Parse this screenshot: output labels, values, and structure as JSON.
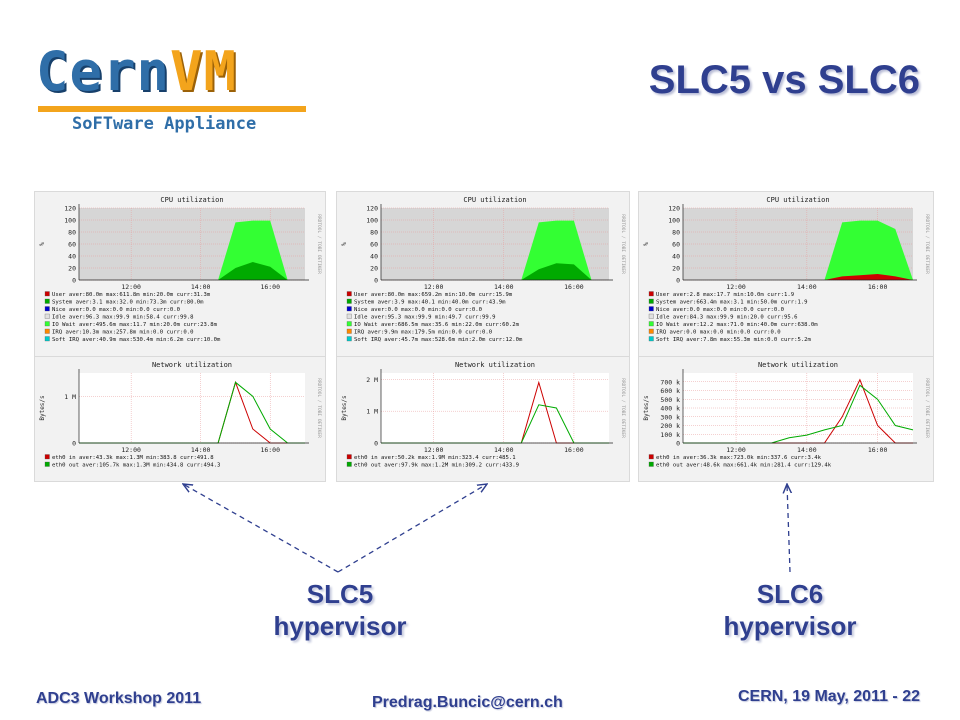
{
  "slide": {
    "title": "SLC5 vs SLC6",
    "logo": {
      "word_cern": "Cern",
      "word_vm": "VM",
      "tagline": "SoFTware Appliance"
    },
    "labels": {
      "left_line1": "SLC5",
      "left_line2": "hypervisor",
      "right_line1": "SLC6",
      "right_line2": "hypervisor"
    },
    "footer": {
      "left": "ADC3 Workshop 2011",
      "center": "Predrag.Buncic@cern.ch",
      "right": "CERN, 19 May, 2011  - 22"
    }
  },
  "colors": {
    "title_blue": "#2f3f8f",
    "logo_blue": "#2f6ea8",
    "logo_orange": "#f3a41c"
  },
  "chart_data": [
    {
      "type": "area",
      "title": "CPU utilization",
      "ylabel": "%",
      "sidelabel": "RRDTOOL / TOBI OETIKER",
      "yticks": [
        "120",
        "100",
        "80",
        "60",
        "40",
        "20",
        "0"
      ],
      "ylim": [
        0,
        120
      ],
      "xticks": [
        "12:00",
        "14:00",
        "16:00"
      ],
      "x": [
        10.5,
        11,
        11.5,
        12,
        12.5,
        13,
        13.5,
        14,
        14.5,
        15,
        15.5,
        16,
        16.5,
        17
      ],
      "series": [
        {
          "name": "User",
          "color": "#cc0000",
          "values": [
            0,
            0,
            0,
            0,
            0,
            0,
            0,
            0,
            0,
            0,
            0,
            0,
            0,
            0
          ]
        },
        {
          "name": "System",
          "color": "#00aa00",
          "values": [
            0,
            0,
            0,
            0,
            0,
            0,
            0,
            0,
            0,
            20,
            30,
            22,
            0,
            0
          ]
        },
        {
          "name": "IO Wait",
          "color": "#33ff33",
          "values": [
            0,
            0,
            0,
            0,
            0,
            0,
            0,
            0,
            0,
            96,
            99,
            99,
            0,
            0
          ]
        }
      ],
      "legend": [
        {
          "color": "#cc0000",
          "text": "User  aver:80.0m   max:611.8m  min:20.0m   curr:31.3m"
        },
        {
          "color": "#00aa00",
          "text": "System  aver:3.1    max:32.0    min:73.3m   curr:80.0m"
        },
        {
          "color": "#0000cc",
          "text": "Nice  aver:0.0    max:0.0    min:0.0    curr:0.0"
        },
        {
          "color": "#e0e0e0",
          "text": "Idle  aver:96.3   max:99.9   min:58.4   curr:99.8"
        },
        {
          "color": "#33ff33",
          "text": "IO Wait  aver:495.6m  max:11.7   min:20.0m   curr:23.8m"
        },
        {
          "color": "#ff8800",
          "text": "IRQ  aver:10.3m   max:257.8m   min:0.0   curr:0.0"
        },
        {
          "color": "#00cccc",
          "text": "Soft IRQ  aver:40.9m   max:530.4m   min:6.2m   curr:10.0m"
        }
      ]
    },
    {
      "type": "area",
      "title": "CPU utilization",
      "ylabel": "%",
      "sidelabel": "RRDTOOL / TOBI OETIKER",
      "yticks": [
        "120",
        "100",
        "80",
        "60",
        "40",
        "20",
        "0"
      ],
      "ylim": [
        0,
        120
      ],
      "xticks": [
        "12:00",
        "14:00",
        "16:00"
      ],
      "x": [
        10.5,
        11,
        11.5,
        12,
        12.5,
        13,
        13.5,
        14,
        14.5,
        15,
        15.5,
        16,
        16.5,
        17
      ],
      "series": [
        {
          "name": "User",
          "color": "#cc0000",
          "values": [
            0,
            0,
            0,
            0,
            0,
            0,
            0,
            0,
            0,
            0,
            0,
            0,
            0,
            0
          ]
        },
        {
          "name": "System",
          "color": "#00aa00",
          "values": [
            0,
            0,
            0,
            0,
            0,
            0,
            0,
            0,
            0,
            18,
            28,
            26,
            0,
            0
          ]
        },
        {
          "name": "IO Wait",
          "color": "#33ff33",
          "values": [
            0,
            0,
            0,
            0,
            0,
            0,
            0,
            0,
            0,
            96,
            99,
            99,
            0,
            0
          ]
        }
      ],
      "legend": [
        {
          "color": "#cc0000",
          "text": "User  aver:80.0m   max:659.2m   min:10.0m   curr:15.9m"
        },
        {
          "color": "#00aa00",
          "text": "System  aver:3.9    max:40.1    min:40.0m   curr:43.9m"
        },
        {
          "color": "#0000cc",
          "text": "Nice  aver:0.0   max:0.0   min:0.0   curr:0.0"
        },
        {
          "color": "#e0e0e0",
          "text": "Idle  aver:95.3   max:99.9   min:49.7   curr:99.9"
        },
        {
          "color": "#33ff33",
          "text": "IO Wait  aver:686.5m  max:35.6   min:22.0m   curr:60.2m"
        },
        {
          "color": "#ff8800",
          "text": "IRQ  aver:9.9m   max:179.5m   min:0.0   curr:0.0"
        },
        {
          "color": "#00cccc",
          "text": "Soft IRQ  aver:45.7m   max:528.6m   min:2.0m   curr:12.0m"
        }
      ]
    },
    {
      "type": "area",
      "title": "CPU utilization",
      "ylabel": "%",
      "sidelabel": "RRDTOOL / TOBI OETIKER",
      "yticks": [
        "120",
        "100",
        "80",
        "60",
        "40",
        "20",
        "0"
      ],
      "ylim": [
        0,
        120
      ],
      "xticks": [
        "12:00",
        "14:00",
        "16:00"
      ],
      "x": [
        10.5,
        11,
        11.5,
        12,
        12.5,
        13,
        13.5,
        14,
        14.5,
        15,
        15.5,
        16,
        16.5,
        17
      ],
      "series": [
        {
          "name": "User",
          "color": "#cc0000",
          "values": [
            0,
            0,
            0,
            0,
            0,
            0,
            0,
            0,
            0,
            6,
            8,
            10,
            6,
            0
          ]
        },
        {
          "name": "System",
          "color": "#00aa00",
          "values": [
            0,
            0,
            0,
            0,
            0,
            0,
            0,
            0,
            0,
            0,
            0,
            0,
            0,
            0
          ]
        },
        {
          "name": "IO Wait",
          "color": "#33ff33",
          "values": [
            0,
            0,
            0,
            0,
            0,
            0,
            0,
            0,
            0,
            96,
            99,
            99,
            85,
            0
          ]
        }
      ],
      "legend": [
        {
          "color": "#cc0000",
          "text": "User  aver:2.8   max:17.7   min:10.0m   curr:1.9"
        },
        {
          "color": "#00aa00",
          "text": "System  aver:663.4m   max:3.1   min:50.0m   curr:1.9"
        },
        {
          "color": "#0000cc",
          "text": "Nice  aver:0.0   max:0.0   min:0.0   curr:0.0"
        },
        {
          "color": "#e0e0e0",
          "text": "Idle  aver:84.3   max:99.9   min:20.0   curr:95.6"
        },
        {
          "color": "#33ff33",
          "text": "IO Wait  aver:12.2   max:71.0   min:40.0m   curr:638.0m"
        },
        {
          "color": "#ff8800",
          "text": "IRQ  aver:0.0   max:0.0   min:0.0   curr:0.0"
        },
        {
          "color": "#00cccc",
          "text": "Soft IRQ  aver:7.8m   max:55.3m   min:0.0   curr:5.2m"
        }
      ]
    },
    {
      "type": "line",
      "title": "Network utilization",
      "ylabel": "Bytes/s",
      "sidelabel": "RRDTOOL / TOBI OETIKER",
      "yticks": [
        "1 M",
        "0"
      ],
      "ytick_values": [
        1000000,
        0
      ],
      "ylim": [
        0,
        1500000
      ],
      "xticks": [
        "12:00",
        "14:00",
        "16:00"
      ],
      "x": [
        10.5,
        11,
        11.5,
        12,
        12.5,
        13,
        13.5,
        14,
        14.5,
        15,
        15.5,
        16,
        16.5,
        17
      ],
      "series": [
        {
          "name": "eth0 in",
          "color": "#cc0000",
          "values": [
            0,
            0,
            0,
            0,
            0,
            0,
            0,
            0,
            0,
            1300000,
            300000,
            0,
            0,
            0
          ]
        },
        {
          "name": "eth0 out",
          "color": "#00aa00",
          "values": [
            0,
            0,
            0,
            0,
            0,
            0,
            0,
            0,
            0,
            1300000,
            1000000,
            300000,
            0,
            0
          ]
        }
      ],
      "legend": [
        {
          "color": "#cc0000",
          "text": "eth0 in   aver:43.3k   max:1.3M   min:383.8    curr:491.8"
        },
        {
          "color": "#00aa00",
          "text": "eth0 out  aver:105.7k   max:1.3M   min:434.8    curr:494.3"
        }
      ]
    },
    {
      "type": "line",
      "title": "Network utilization",
      "ylabel": "Bytes/s",
      "sidelabel": "RRDTOOL / TOBI OETIKER",
      "yticks": [
        "2 M",
        "1 M",
        "0"
      ],
      "ytick_values": [
        2000000,
        1000000,
        0
      ],
      "ylim": [
        0,
        2200000
      ],
      "xticks": [
        "12:00",
        "14:00",
        "16:00"
      ],
      "x": [
        10.5,
        11,
        11.5,
        12,
        12.5,
        13,
        13.5,
        14,
        14.5,
        15,
        15.5,
        16,
        16.5,
        17
      ],
      "series": [
        {
          "name": "eth0 in",
          "color": "#cc0000",
          "values": [
            0,
            0,
            0,
            0,
            0,
            0,
            0,
            0,
            0,
            1900000,
            0,
            0,
            0,
            0
          ]
        },
        {
          "name": "eth0 out",
          "color": "#00aa00",
          "values": [
            0,
            0,
            0,
            0,
            0,
            0,
            0,
            0,
            0,
            1200000,
            1100000,
            0,
            0,
            0
          ]
        }
      ],
      "legend": [
        {
          "color": "#cc0000",
          "text": "eth0 in   aver:50.2k   max:1.9M   min:323.4    curr:485.1"
        },
        {
          "color": "#00aa00",
          "text": "eth0 out  aver:97.9k   max:1.2M   min:309.2    curr:433.9"
        }
      ]
    },
    {
      "type": "line",
      "title": "Network utilization",
      "ylabel": "Bytes/s",
      "sidelabel": "RRDTOOL / TOBI OETIKER",
      "yticks": [
        "700 k",
        "600 k",
        "500 k",
        "400 k",
        "300 k",
        "200 k",
        "100 k",
        "0"
      ],
      "ytick_values": [
        700000,
        600000,
        500000,
        400000,
        300000,
        200000,
        100000,
        0
      ],
      "ylim": [
        0,
        800000
      ],
      "xticks": [
        "12:00",
        "14:00",
        "16:00"
      ],
      "x": [
        10.5,
        11,
        11.5,
        12,
        12.5,
        13,
        13.5,
        14,
        14.5,
        15,
        15.5,
        16,
        16.5,
        17
      ],
      "series": [
        {
          "name": "eth0 in",
          "color": "#cc0000",
          "values": [
            0,
            0,
            0,
            0,
            0,
            0,
            0,
            0,
            0,
            300000,
            723000,
            200000,
            0,
            0
          ]
        },
        {
          "name": "eth0 out",
          "color": "#00aa00",
          "values": [
            0,
            0,
            0,
            0,
            0,
            0,
            60000,
            90000,
            150000,
            200000,
            660000,
            500000,
            200000,
            150000
          ]
        }
      ],
      "legend": [
        {
          "color": "#cc0000",
          "text": "eth0 in   aver:36.3k   max:723.0k   min:337.6    curr:3.4k"
        },
        {
          "color": "#00aa00",
          "text": "eth0 out  aver:48.6k   max:661.4k   min:281.4    curr:129.4k"
        }
      ]
    }
  ]
}
